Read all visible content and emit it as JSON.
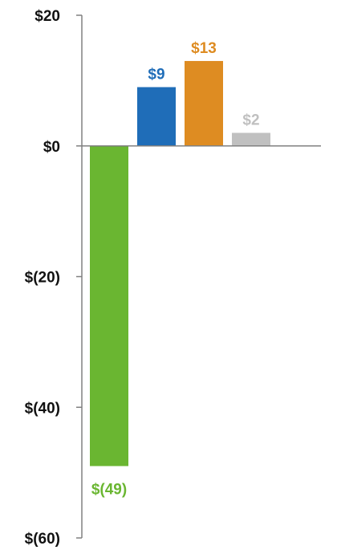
{
  "chart_data": {
    "type": "bar",
    "categories": [
      "",
      "",
      "",
      ""
    ],
    "values": [
      -49,
      9,
      13,
      2
    ],
    "data_labels": [
      "$(49)",
      "$9",
      "$13",
      "$2"
    ],
    "colors": [
      "#6ab631",
      "#1f6db8",
      "#de8c22",
      "#c0c0c0"
    ],
    "title": "",
    "xlabel": "",
    "ylabel": "",
    "ylim": [
      -60,
      20
    ],
    "yticks": [
      20,
      0,
      -20,
      -40,
      -60
    ],
    "ytick_labels": [
      "$20",
      "$0",
      "$(20)",
      "$(40)",
      "$(60)"
    ],
    "grid": false,
    "legend": "none",
    "axis_color": "#808080",
    "tick_label_color": "#111111"
  }
}
